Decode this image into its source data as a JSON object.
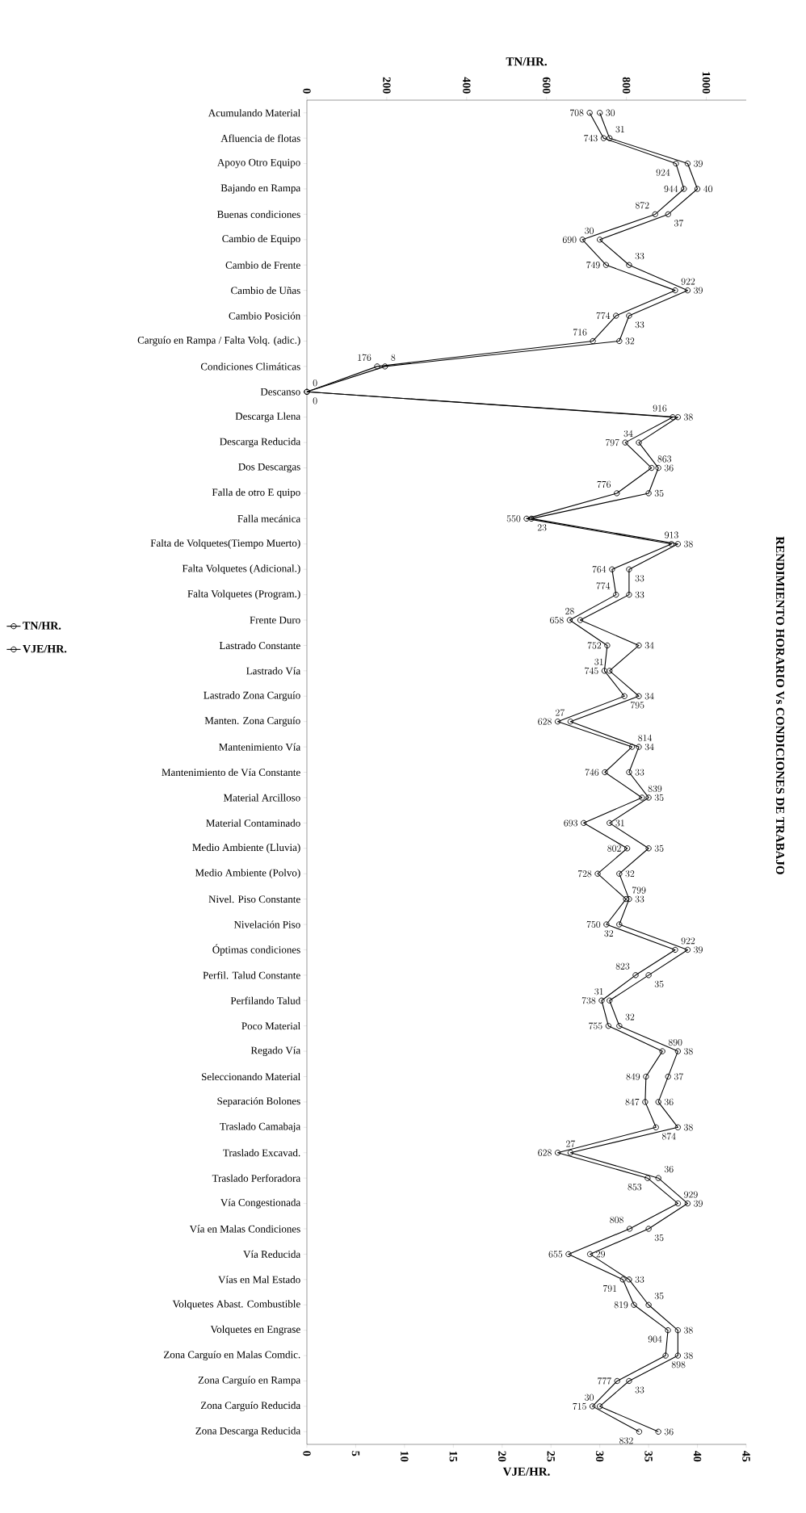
{
  "chart_data": {
    "type": "line",
    "orientation": "horizontal",
    "title": "RENDIMIENTO HORARIO Vs CONDICIONES DE TRABAJO",
    "xlabel": "VJE/HR.",
    "x2label": "TN/HR.",
    "categories": [
      "Acumulando Material",
      "Afluencia de flotas",
      "Apoyo Otro Equipo",
      "Bajando en Rampa",
      "Buenas condiciones",
      "Cambio de Equipo",
      "Cambio de Frente",
      "Cambio de Uñas",
      "Cambio Posición",
      "Carguío en Rampa / Falta Volq. (adic.)",
      "Condiciones Climáticas",
      "Descanso",
      "Descarga Llena",
      "Descarga Reducida",
      "Dos Descargas",
      "Falla de otro E quipo",
      "Falla mecánica",
      "Falta de Volquetes(Tiempo Muerto)",
      "Falta Volquetes (Adicional.)",
      "Falta Volquetes (Program.)",
      "Frente Duro",
      "Lastrado Constante",
      "Lastrado Vía",
      "Lastrado Zona Carguío",
      "Manten. Zona Carguío",
      "Mantenimiento Vía",
      "Mantenimiento de Vía Constante",
      "Material Arcilloso",
      "Material Contaminado",
      "Medio Ambiente (Lluvia)",
      "Medio Ambiente (Polvo)",
      "Nivel. Piso Constante",
      "Nivelación Piso",
      "Óptimas condiciones",
      "Perfil. Talud Constante",
      "Perfilando Talud",
      "Poco Material",
      "Regado Vía",
      "Seleccionando Material",
      "Separación Bolones",
      "Traslado Camabaja",
      "Traslado Excavad.",
      "Traslado Perforadora",
      "Vía Congestionada",
      "Vía en Malas Condiciones",
      "Vía Reducida",
      "Vías en Mal Estado",
      "Volquetes Abast. Combustible",
      "Volquetes en Engrase",
      "Zona Carguío en Malas Comdic.",
      "Zona Carguío en Rampa",
      "Zona Carguío Reducida",
      "Zona Descarga Reducida"
    ],
    "series": [
      {
        "name": "TN/HR.",
        "color": "#000000",
        "axis": "x2",
        "values": [
          708,
          743,
          924,
          944,
          872,
          690,
          749,
          922,
          774,
          716,
          176,
          0,
          916,
          797,
          863,
          776,
          550,
          913,
          764,
          774,
          658,
          752,
          745,
          795,
          628,
          814,
          746,
          839,
          693,
          802,
          728,
          799,
          750,
          922,
          823,
          738,
          755,
          890,
          849,
          847,
          874,
          628,
          853,
          929,
          808,
          655,
          791,
          819,
          904,
          898,
          777,
          715,
          832
        ]
      },
      {
        "name": "VJE/HR.",
        "color": "#000000",
        "values": [
          30,
          31,
          39,
          40,
          37,
          30,
          33,
          39,
          33,
          32,
          8,
          0,
          38,
          34,
          36,
          35,
          23,
          38,
          33,
          33,
          28,
          34,
          31,
          34,
          27,
          34,
          33,
          35,
          31,
          35,
          32,
          33,
          32,
          39,
          35,
          31,
          32,
          38,
          37,
          36,
          38,
          27,
          36,
          39,
          35,
          29,
          33,
          35,
          38,
          38,
          33,
          30,
          36
        ]
      }
    ],
    "xlim": [
      0,
      45
    ],
    "xticks": [
      0,
      5,
      10,
      15,
      20,
      25,
      30,
      35,
      40,
      45
    ],
    "x2lim": [
      0,
      1100
    ],
    "x2ticks": [
      0,
      200,
      400,
      600,
      800,
      1000
    ],
    "data_labels": true,
    "marker": "circle",
    "legend": "left"
  }
}
